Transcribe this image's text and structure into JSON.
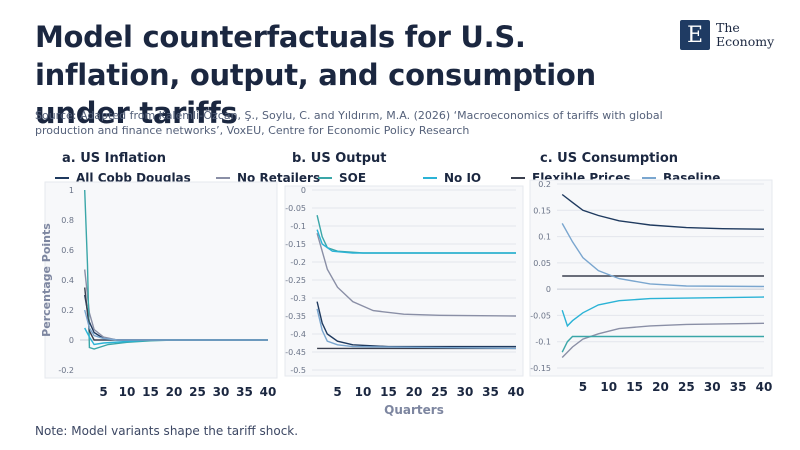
{
  "header": {
    "title": "Model counterfactuals for U.S. inflation, output, and consumption under tariffs",
    "source": "Source: Adapted from Kalemli-Özcan, Ş., Soylu, C. and Yıldırım, M.A. (2026) ‘Macroeconomics of tariffs with global production and finance networks’, VoxEU, Centre for Economic Policy Research",
    "note": "Note: Model variants shape the tariff shock."
  },
  "logo": {
    "mark": "E",
    "line1": "The",
    "line2": "Economy"
  },
  "legend": [
    {
      "label": "All Cobb Douglas",
      "color": "#1f3a5f"
    },
    {
      "label": "No Retailers",
      "color": "#8a8fa6"
    },
    {
      "label": "SOE",
      "color": "#3aa6a8"
    },
    {
      "label": "No IO",
      "color": "#2bb3d6"
    },
    {
      "label": "Flexible Prices",
      "color": "#3a3f4e"
    },
    {
      "label": "Baseline",
      "color": "#7aa6cf"
    }
  ],
  "chart_data": [
    {
      "type": "line",
      "title": "a. US Inflation",
      "ylabel": "Percentage Points",
      "xlabel": "",
      "xticks": [
        5,
        10,
        15,
        20,
        25,
        30,
        35,
        40
      ],
      "yticks": [
        1,
        0.8,
        0.6,
        0.4,
        0.2,
        0,
        -0.2
      ],
      "ytick_labels": [
        "1",
        "0.8",
        "0.6",
        "0.4",
        "0.2",
        "0",
        "-0.2"
      ],
      "ylim": [
        -0.2,
        1.0
      ],
      "xlim": [
        0,
        40
      ],
      "grid": false,
      "series": [
        {
          "name": "All Cobb Douglas",
          "color": "#1f3a5f",
          "points": [
            [
              1,
              0.3
            ],
            [
              2,
              0.12
            ],
            [
              3,
              0.05
            ],
            [
              5,
              0.01
            ],
            [
              8,
              0.0
            ],
            [
              40,
              0.0
            ]
          ]
        },
        {
          "name": "No Retailers",
          "color": "#8a8fa6",
          "points": [
            [
              1,
              0.47
            ],
            [
              2,
              0.18
            ],
            [
              3,
              0.07
            ],
            [
              5,
              0.02
            ],
            [
              8,
              0.0
            ],
            [
              40,
              0.0
            ]
          ]
        },
        {
          "name": "SOE",
          "color": "#3aa6a8",
          "points": [
            [
              1,
              1.0
            ],
            [
              1.6,
              0.5
            ],
            [
              2,
              -0.05
            ],
            [
              3,
              -0.06
            ],
            [
              6,
              -0.03
            ],
            [
              10,
              -0.015
            ],
            [
              15,
              -0.005
            ],
            [
              20,
              0.0
            ],
            [
              40,
              0.0
            ]
          ]
        },
        {
          "name": "No IO",
          "color": "#2bb3d6",
          "points": [
            [
              1,
              0.08
            ],
            [
              2,
              0.02
            ],
            [
              3,
              -0.03
            ],
            [
              5,
              -0.02
            ],
            [
              10,
              -0.01
            ],
            [
              15,
              0.0
            ],
            [
              40,
              0.0
            ]
          ]
        },
        {
          "name": "Flexible Prices",
          "color": "#3a3f4e",
          "points": [
            [
              1,
              0.35
            ],
            [
              2,
              0.06
            ],
            [
              3,
              0.0
            ],
            [
              40,
              0.0
            ]
          ]
        },
        {
          "name": "Baseline",
          "color": "#7aa6cf",
          "points": [
            [
              1,
              0.2
            ],
            [
              2,
              0.08
            ],
            [
              3,
              0.03
            ],
            [
              5,
              0.01
            ],
            [
              8,
              0.0
            ],
            [
              40,
              0.0
            ]
          ]
        }
      ]
    },
    {
      "type": "line",
      "title": "b. US Output",
      "ylabel": "",
      "xlabel": "Quarters",
      "xticks": [
        5,
        10,
        15,
        20,
        25,
        30,
        35,
        40
      ],
      "yticks": [
        0,
        -0.05,
        -0.1,
        -0.15,
        -0.2,
        -0.25,
        -0.3,
        -0.35,
        -0.4,
        -0.45,
        -0.5
      ],
      "ytick_labels": [
        "0",
        "-0.05",
        "-0.1",
        "-0.15",
        "-0.2",
        "-0.25",
        "-0.3",
        "-0.35",
        "-0.4",
        "-0.45",
        "-0.5"
      ],
      "ylim": [
        -0.5,
        0.0
      ],
      "xlim": [
        0,
        40
      ],
      "grid": true,
      "series": [
        {
          "name": "All Cobb Douglas",
          "color": "#1f3a5f",
          "points": [
            [
              1,
              -0.31
            ],
            [
              2,
              -0.37
            ],
            [
              3,
              -0.4
            ],
            [
              5,
              -0.42
            ],
            [
              8,
              -0.43
            ],
            [
              15,
              -0.435
            ],
            [
              40,
              -0.435
            ]
          ]
        },
        {
          "name": "No Retailers",
          "color": "#8a8fa6",
          "points": [
            [
              1,
              -0.12
            ],
            [
              3,
              -0.22
            ],
            [
              5,
              -0.27
            ],
            [
              8,
              -0.31
            ],
            [
              12,
              -0.335
            ],
            [
              18,
              -0.345
            ],
            [
              25,
              -0.348
            ],
            [
              40,
              -0.35
            ]
          ]
        },
        {
          "name": "SOE",
          "color": "#3aa6a8",
          "points": [
            [
              1,
              -0.07
            ],
            [
              2,
              -0.13
            ],
            [
              3,
              -0.16
            ],
            [
              5,
              -0.17
            ],
            [
              10,
              -0.175
            ],
            [
              40,
              -0.175
            ]
          ]
        },
        {
          "name": "No IO",
          "color": "#2bb3d6",
          "points": [
            [
              1,
              -0.11
            ],
            [
              2,
              -0.15
            ],
            [
              4,
              -0.17
            ],
            [
              8,
              -0.175
            ],
            [
              40,
              -0.175
            ]
          ]
        },
        {
          "name": "Flexible Prices",
          "color": "#3a3f4e",
          "points": [
            [
              1,
              -0.44
            ],
            [
              40,
              -0.44
            ]
          ]
        },
        {
          "name": "Baseline",
          "color": "#7aa6cf",
          "points": [
            [
              1,
              -0.33
            ],
            [
              2,
              -0.39
            ],
            [
              3,
              -0.42
            ],
            [
              5,
              -0.43
            ],
            [
              8,
              -0.435
            ],
            [
              40,
              -0.44
            ]
          ]
        }
      ]
    },
    {
      "type": "line",
      "title": "c. US Consumption",
      "ylabel": "",
      "xlabel": "",
      "xticks": [
        5,
        10,
        15,
        20,
        25,
        30,
        35,
        40
      ],
      "yticks": [
        0.2,
        0.15,
        0.1,
        0.05,
        0,
        -0.05,
        -0.1,
        -0.15
      ],
      "ytick_labels": [
        "0.2",
        "0.15",
        "0.1",
        "0.05",
        "0",
        "-0.05",
        "-0.1",
        "-0.15"
      ],
      "ylim": [
        -0.15,
        0.2
      ],
      "xlim": [
        0,
        40
      ],
      "grid": true,
      "series": [
        {
          "name": "All Cobb Douglas",
          "color": "#1f3a5f",
          "points": [
            [
              1,
              0.18
            ],
            [
              3,
              0.165
            ],
            [
              5,
              0.15
            ],
            [
              8,
              0.14
            ],
            [
              12,
              0.13
            ],
            [
              18,
              0.122
            ],
            [
              25,
              0.117
            ],
            [
              32,
              0.115
            ],
            [
              40,
              0.114
            ]
          ]
        },
        {
          "name": "No Retailers",
          "color": "#8a8fa6",
          "points": [
            [
              1,
              -0.13
            ],
            [
              3,
              -0.11
            ],
            [
              5,
              -0.095
            ],
            [
              8,
              -0.085
            ],
            [
              12,
              -0.075
            ],
            [
              18,
              -0.07
            ],
            [
              25,
              -0.067
            ],
            [
              40,
              -0.065
            ]
          ]
        },
        {
          "name": "SOE",
          "color": "#3aa6a8",
          "points": [
            [
              1,
              -0.12
            ],
            [
              2,
              -0.1
            ],
            [
              3,
              -0.09
            ],
            [
              5,
              -0.09
            ],
            [
              40,
              -0.09
            ]
          ]
        },
        {
          "name": "No IO",
          "color": "#2bb3d6",
          "points": [
            [
              1,
              -0.04
            ],
            [
              2,
              -0.07
            ],
            [
              3,
              -0.06
            ],
            [
              5,
              -0.045
            ],
            [
              8,
              -0.03
            ],
            [
              12,
              -0.022
            ],
            [
              18,
              -0.018
            ],
            [
              40,
              -0.015
            ]
          ]
        },
        {
          "name": "Flexible Prices",
          "color": "#3a3f4e",
          "points": [
            [
              1,
              0.025
            ],
            [
              40,
              0.025
            ]
          ]
        },
        {
          "name": "Baseline",
          "color": "#7aa6cf",
          "points": [
            [
              1,
              0.125
            ],
            [
              3,
              0.09
            ],
            [
              5,
              0.06
            ],
            [
              8,
              0.035
            ],
            [
              12,
              0.02
            ],
            [
              18,
              0.01
            ],
            [
              25,
              0.006
            ],
            [
              40,
              0.005
            ]
          ]
        }
      ]
    }
  ]
}
